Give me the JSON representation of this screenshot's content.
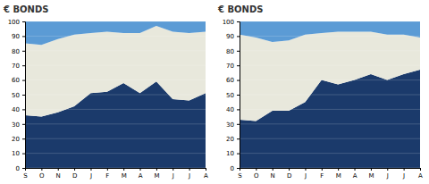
{
  "chart_data": [
    {
      "type": "area",
      "title": "€ BONDS",
      "categories": [
        "S",
        "O",
        "N",
        "D",
        "J",
        "F",
        "M",
        "A",
        "M",
        "J",
        "J",
        "A"
      ],
      "series": [
        {
          "color": "#1b3a6b",
          "values": [
            36,
            35,
            38,
            42,
            51,
            52,
            58,
            51,
            59,
            47,
            46,
            51
          ]
        },
        {
          "color": "#e8e8dc",
          "values": [
            85,
            84,
            88,
            91,
            92,
            93,
            92,
            92,
            97,
            93,
            92,
            93
          ]
        }
      ],
      "color": "#5b9bd5",
      "ylim": [
        0,
        100
      ],
      "yticks": [
        0,
        10,
        20,
        30,
        40,
        50,
        60,
        70,
        80,
        90,
        100
      ],
      "grid": true
    },
    {
      "type": "area",
      "title": "€ BONDS",
      "categories": [
        "S",
        "O",
        "N",
        "D",
        "J",
        "F",
        "M",
        "A",
        "M",
        "J",
        "J",
        "A"
      ],
      "series": [
        {
          "color": "#1b3a6b",
          "values": [
            33,
            32,
            39,
            39,
            45,
            60,
            57,
            60,
            64,
            60,
            64,
            67
          ]
        },
        {
          "color": "#e8e8dc",
          "values": [
            91,
            89,
            86,
            87,
            91,
            92,
            93,
            93,
            93,
            91,
            91,
            89
          ]
        }
      ],
      "color": "#5b9bd5",
      "ylim": [
        0,
        100
      ],
      "yticks": [
        0,
        10,
        20,
        30,
        40,
        50,
        60,
        70,
        80,
        90,
        100
      ],
      "grid": true
    }
  ]
}
